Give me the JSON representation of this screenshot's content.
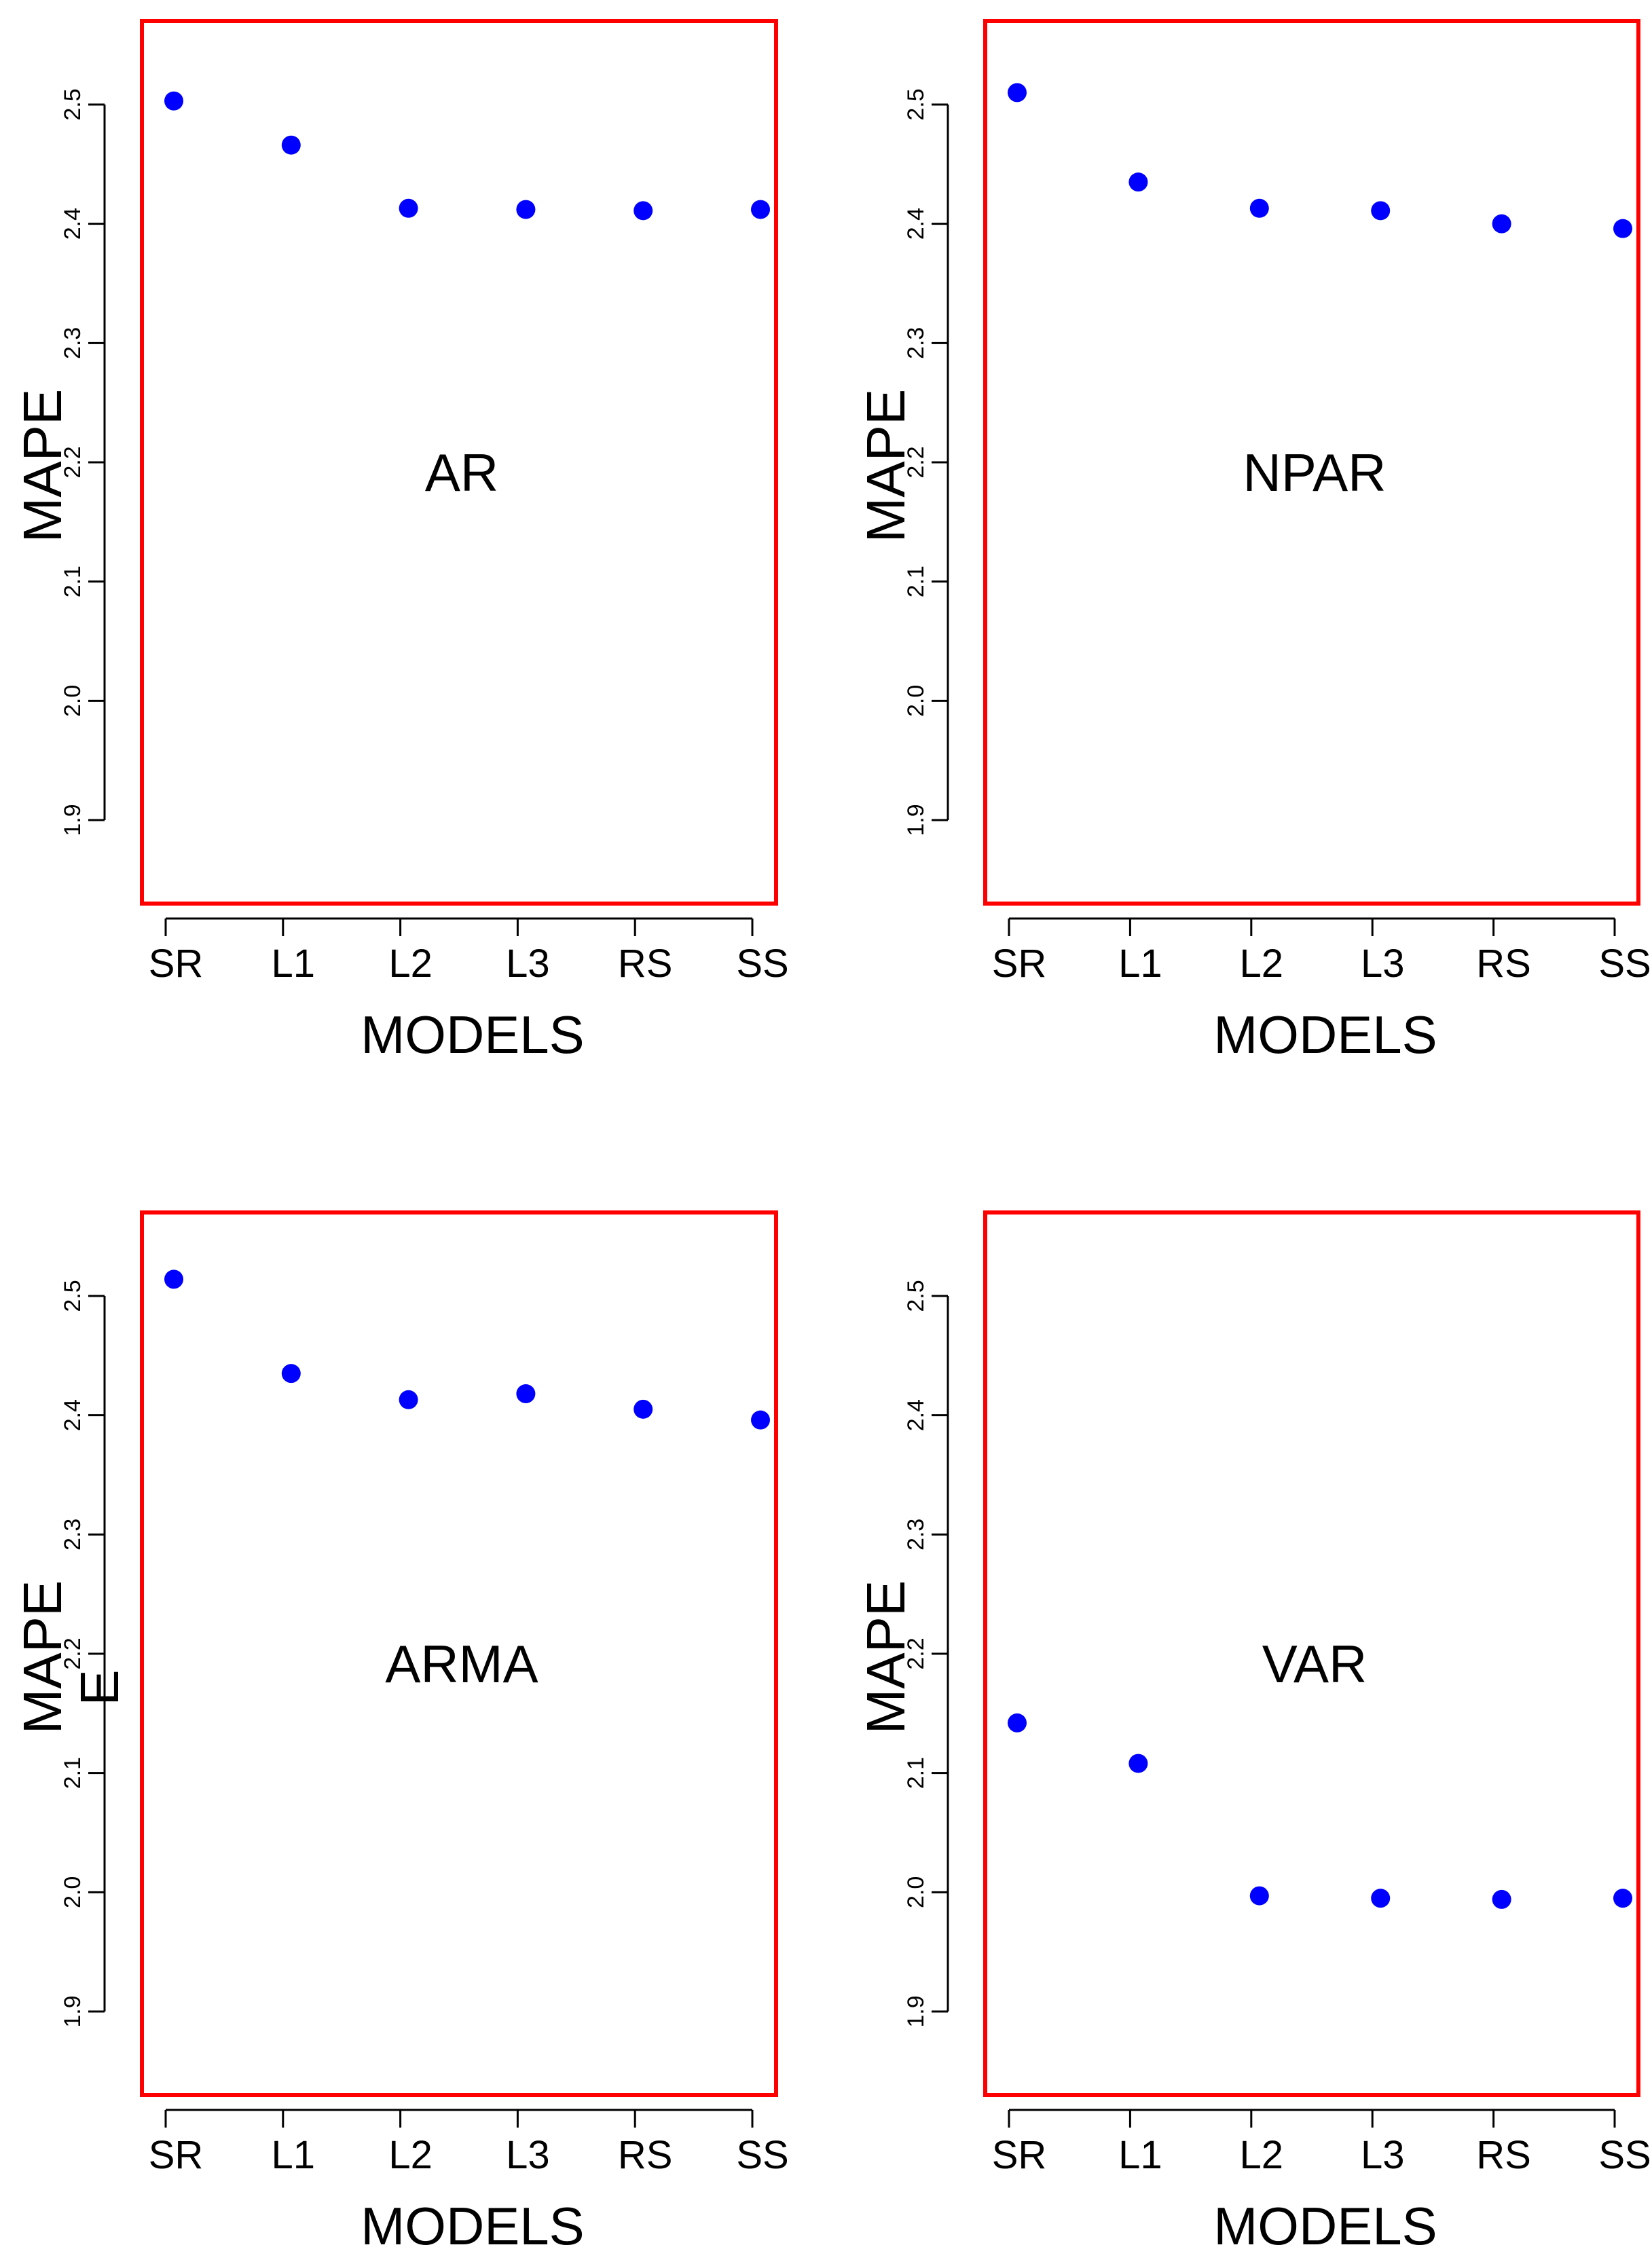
{
  "chart_data": [
    {
      "type": "scatter",
      "title": "AR",
      "categories": [
        "SR",
        "L1",
        "L2",
        "L3",
        "RS",
        "SS"
      ],
      "values": [
        2.503,
        2.466,
        2.413,
        2.412,
        2.411,
        2.412
      ],
      "xlabel": "MODELS",
      "ylabel": "MAPE",
      "ylim": [
        1.83,
        2.57
      ],
      "yticks": [
        "1.9",
        "2.0",
        "2.1",
        "2.2",
        "2.3",
        "2.4",
        "2.5"
      ],
      "grid": false
    },
    {
      "type": "scatter",
      "title": "NPAR",
      "categories": [
        "SR",
        "L1",
        "L2",
        "L3",
        "RS",
        "SS"
      ],
      "values": [
        2.51,
        2.435,
        2.413,
        2.411,
        2.4,
        2.396
      ],
      "xlabel": "MODELS",
      "ylabel": "MAPE",
      "ylim": [
        1.83,
        2.57
      ],
      "yticks": [
        "1.9",
        "2.0",
        "2.1",
        "2.2",
        "2.3",
        "2.4",
        "2.5"
      ],
      "grid": false
    },
    {
      "type": "scatter",
      "title": "ARMA",
      "categories": [
        "SR",
        "L1",
        "L2",
        "L3",
        "RS",
        "SS"
      ],
      "values": [
        2.514,
        2.435,
        2.413,
        2.418,
        2.405,
        2.396
      ],
      "xlabel": "MODELS",
      "ylabel": "MAPE",
      "ylabel_extra": "E",
      "ylim": [
        1.83,
        2.57
      ],
      "yticks": [
        "1.9",
        "2.0",
        "2.1",
        "2.2",
        "2.3",
        "2.4",
        "2.5"
      ],
      "grid": false
    },
    {
      "type": "scatter",
      "title": "VAR",
      "categories": [
        "SR",
        "L1",
        "L2",
        "L3",
        "RS",
        "SS"
      ],
      "values": [
        2.142,
        2.108,
        1.997,
        1.995,
        1.994,
        1.995
      ],
      "xlabel": "MODELS",
      "ylabel": "MAPE",
      "ylim": [
        1.83,
        2.57
      ],
      "yticks": [
        "1.9",
        "2.0",
        "2.1",
        "2.2",
        "2.3",
        "2.4",
        "2.5"
      ],
      "grid": false
    }
  ],
  "colors": {
    "frame": "#ff0000",
    "points": "#0000ff",
    "text": "#000000",
    "background": "#ffffff"
  }
}
